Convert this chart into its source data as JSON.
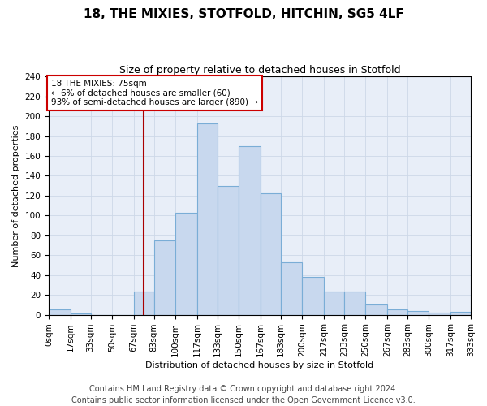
{
  "title": "18, THE MIXIES, STOTFOLD, HITCHIN, SG5 4LF",
  "subtitle": "Size of property relative to detached houses in Stotfold",
  "xlabel": "Distribution of detached houses by size in Stotfold",
  "ylabel": "Number of detached properties",
  "bar_color": "#c8d8ee",
  "bar_edgecolor": "#7aadd6",
  "bar_linewidth": 0.8,
  "ref_line_color": "#aa0000",
  "ref_line_x": 75,
  "annotation_text": "18 THE MIXIES: 75sqm\n← 6% of detached houses are smaller (60)\n93% of semi-detached houses are larger (890) →",
  "annotation_box_color": "#ffffff",
  "annotation_box_edgecolor": "#cc0000",
  "bins_labels": [
    "0sqm",
    "17sqm",
    "33sqm",
    "50sqm",
    "67sqm",
    "83sqm",
    "100sqm",
    "117sqm",
    "133sqm",
    "150sqm",
    "167sqm",
    "183sqm",
    "200sqm",
    "217sqm",
    "233sqm",
    "250sqm",
    "267sqm",
    "283sqm",
    "300sqm",
    "317sqm",
    "333sqm"
  ],
  "bin_edges": [
    0,
    17,
    33,
    50,
    67,
    83,
    100,
    117,
    133,
    150,
    167,
    183,
    200,
    217,
    233,
    250,
    267,
    283,
    300,
    317,
    333
  ],
  "bar_heights": [
    5,
    1,
    0,
    0,
    23,
    75,
    103,
    193,
    130,
    170,
    122,
    53,
    38,
    23,
    23,
    10,
    5,
    4,
    2,
    3
  ],
  "ylim": [
    0,
    240
  ],
  "yticks": [
    0,
    20,
    40,
    60,
    80,
    100,
    120,
    140,
    160,
    180,
    200,
    220,
    240
  ],
  "grid_color": "#cdd8e8",
  "background_color": "#e8eef8",
  "footer_line1": "Contains HM Land Registry data © Crown copyright and database right 2024.",
  "footer_line2": "Contains public sector information licensed under the Open Government Licence v3.0.",
  "title_fontsize": 11,
  "subtitle_fontsize": 9,
  "axis_fontsize": 8,
  "tick_fontsize": 7.5,
  "footer_fontsize": 7
}
